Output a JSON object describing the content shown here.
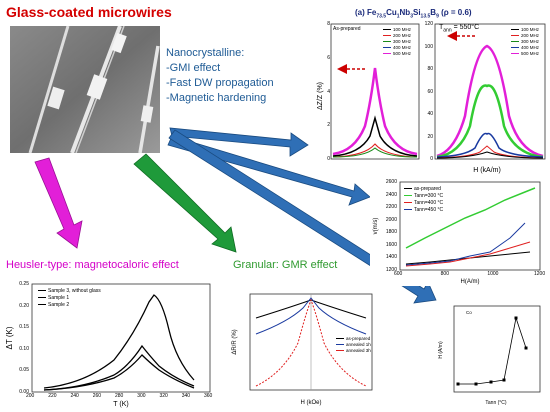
{
  "title": "Glass-coated microwires",
  "nanocrystalline": {
    "heading": "Nanocrystalline:",
    "items": [
      "-GMI effect",
      "-Fast DW propagation",
      "-Magnetic hardening"
    ]
  },
  "heusler_label": "Heusler-type: magnetocaloric effect",
  "granular_label": "Granular: GMR effect",
  "colors": {
    "title": "#d40000",
    "nano": "#1f5b95",
    "heusler": "#d400c8",
    "granular": "#2f9a2f",
    "arrow_blue": "#2f6fb6",
    "arrow_magenta": "#e21fd8",
    "arrow_green": "#1f9a3a"
  },
  "gmi_panel": {
    "composition_html_parts": [
      "(a) Fe",
      "73.5",
      "Cu",
      "1",
      "Nb",
      "3",
      "Si",
      "13.5",
      "B",
      "9",
      "  (ρ = 0.6)"
    ],
    "left_annotation": "As-prepared",
    "right_annotation": "T",
    "right_annotation_sub": "ann",
    "right_annotation_tail": " = 550°C",
    "ylabel": "ΔZ/Z (%)",
    "xlabel": "H (kA/m)",
    "left_yticks": [
      "0",
      "2",
      "4",
      "6",
      "8"
    ],
    "right_yticks": [
      "0",
      "20",
      "40",
      "60",
      "80",
      "100",
      "120"
    ],
    "xticks": [
      "-1.5",
      "-0",
      "-0",
      "0",
      "0",
      "0",
      "1.5"
    ],
    "legend": [
      "100 MHz",
      "200 MHz",
      "300 MHz",
      "400 MHz",
      "500 MHz"
    ]
  },
  "velocity_panel": {
    "ylabel": "v(m/s)",
    "xlabel": "H(A/m)",
    "yticks": [
      "1200",
      "1400",
      "1600",
      "1800",
      "2000",
      "2200",
      "2400",
      "2600"
    ],
    "xticks": [
      "600",
      "800",
      "1000",
      "1200"
    ],
    "legend": [
      "as-prepared",
      "Tann=300 °C",
      "Tann=400 °C",
      "Tann=450 °C"
    ]
  },
  "coercivity_panel": {
    "annotation": "Co",
    "ylabel": "H (A/m)",
    "xlabel": "Tann (°C)",
    "yticks": [
      "0",
      "200",
      "400",
      "600",
      "800"
    ],
    "xticks": [
      "0",
      "200",
      "400",
      "600",
      "800"
    ]
  },
  "mce_panel": {
    "ylabel": "ΔT (K)",
    "xlabel": "T (K)",
    "yticks": [
      "0.00",
      "0.05",
      "0.10",
      "0.15",
      "0.20",
      "0.25"
    ],
    "xticks": [
      "200",
      "220",
      "240",
      "260",
      "280",
      "300",
      "320",
      "340",
      "360"
    ],
    "legend": [
      "Sample 3, without glass",
      "Sample 1",
      "Sample 2"
    ]
  },
  "gmr_panel": {
    "ylabel": "ΔR/R (%)",
    "xlabel": "H (kOe)",
    "yticks": [
      "0",
      "-10",
      "-20"
    ],
    "xticks": [
      "-50",
      "0",
      "50"
    ],
    "legend": [
      "as-prepared",
      "annealed 1h",
      "annealed 3h"
    ]
  }
}
